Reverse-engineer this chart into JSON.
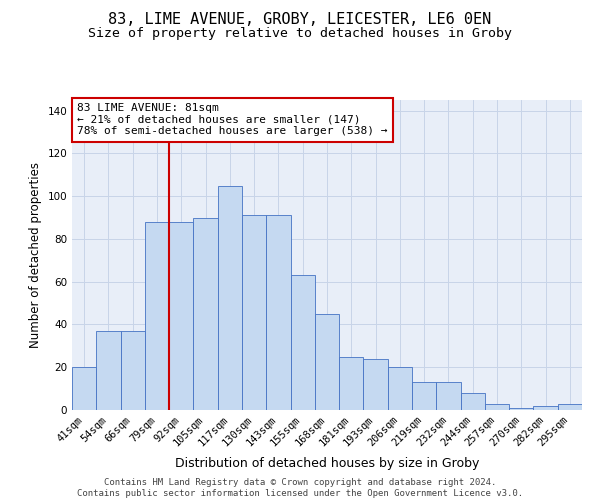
{
  "title": "83, LIME AVENUE, GROBY, LEICESTER, LE6 0EN",
  "subtitle": "Size of property relative to detached houses in Groby",
  "xlabel": "Distribution of detached houses by size in Groby",
  "ylabel": "Number of detached properties",
  "categories": [
    "41sqm",
    "54sqm",
    "66sqm",
    "79sqm",
    "92sqm",
    "105sqm",
    "117sqm",
    "130sqm",
    "143sqm",
    "155sqm",
    "168sqm",
    "181sqm",
    "193sqm",
    "206sqm",
    "219sqm",
    "232sqm",
    "244sqm",
    "257sqm",
    "270sqm",
    "282sqm",
    "295sqm"
  ],
  "values": [
    20,
    37,
    37,
    88,
    88,
    90,
    105,
    91,
    91,
    63,
    45,
    25,
    24,
    20,
    13,
    13,
    8,
    3,
    1,
    2,
    3
  ],
  "bar_color": "#c5d9f1",
  "bar_edge_color": "#4472c4",
  "vline_index": 3,
  "vline_color": "#cc0000",
  "annotation_text": "83 LIME AVENUE: 81sqm\n← 21% of detached houses are smaller (147)\n78% of semi-detached houses are larger (538) →",
  "annotation_box_color": "#ffffff",
  "annotation_box_edge": "#cc0000",
  "ylim": [
    0,
    145
  ],
  "yticks": [
    0,
    20,
    40,
    60,
    80,
    100,
    120,
    140
  ],
  "grid_color": "#c8d4e8",
  "background_color": "#e8eef8",
  "footer": "Contains HM Land Registry data © Crown copyright and database right 2024.\nContains public sector information licensed under the Open Government Licence v3.0.",
  "title_fontsize": 11,
  "subtitle_fontsize": 9.5,
  "xlabel_fontsize": 9,
  "ylabel_fontsize": 8.5,
  "tick_fontsize": 7.5,
  "annotation_fontsize": 8,
  "footer_fontsize": 6.5
}
